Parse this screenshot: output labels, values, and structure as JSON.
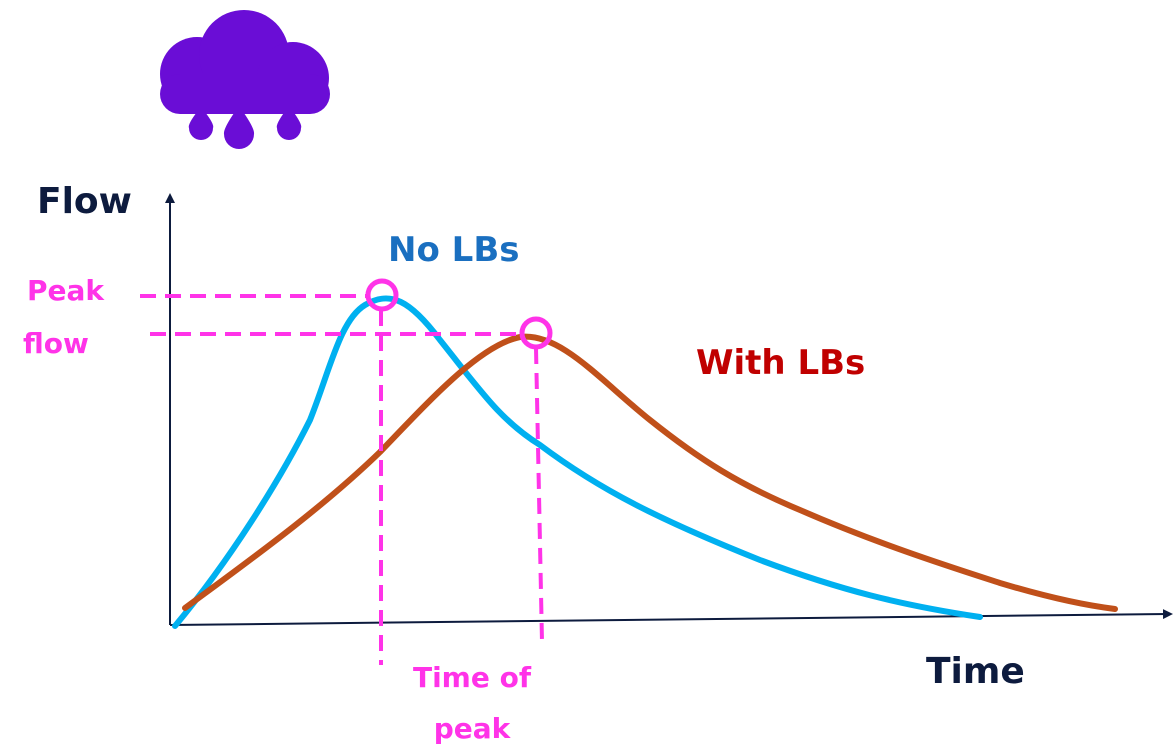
{
  "icon": {
    "name": "rain-cloud-icon",
    "color": "#6a0dd6"
  },
  "axes": {
    "y_label": "Flow",
    "x_label": "Time",
    "color": "#0d1b3e"
  },
  "series": [
    {
      "name": "No LBs",
      "color": "#00b0f0",
      "label_color": "#1a6fc0"
    },
    {
      "name": "With LBs",
      "color": "#c0501a",
      "label_color": "#c00000"
    }
  ],
  "annotations": {
    "peak_flow": [
      "Peak",
      "flow"
    ],
    "time_of_peak": [
      "Time of",
      "peak"
    ],
    "color": "#ff33e8"
  }
}
